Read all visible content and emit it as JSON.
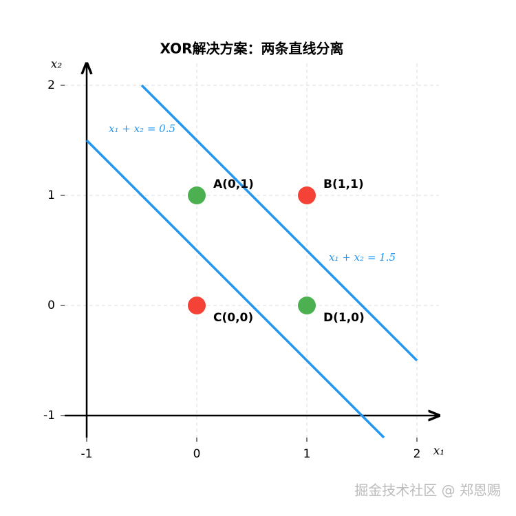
{
  "chart_data": {
    "type": "scatter",
    "title": "XOR解决方案：两条直线分离",
    "x_label": "x₁",
    "y_label": "x₂",
    "xlim": [
      -1.2,
      2.2
    ],
    "ylim": [
      -1.2,
      2.2
    ],
    "xticks": [
      -1,
      0,
      1,
      2
    ],
    "yticks": [
      -1,
      0,
      1,
      2
    ],
    "grid": true,
    "points": {
      "x": [
        0,
        1,
        0,
        1
      ],
      "y": [
        1,
        1,
        0,
        0
      ],
      "labels": [
        "A(0,1)",
        "B(1,1)",
        "C(0,0)",
        "D(1,0)"
      ],
      "colors": [
        "#4caf50",
        "#f44336",
        "#f44336",
        "#4caf50"
      ]
    },
    "lines": [
      {
        "label": "x₁ + x₂ = 0.5",
        "color": "#2196f3",
        "x": [
          -1,
          1.7
        ],
        "y": [
          1.5,
          -1.2
        ]
      },
      {
        "label": "x₁ + x₂ = 1.5",
        "color": "#2196f3",
        "x": [
          -0.5,
          2
        ],
        "y": [
          2,
          -0.5
        ]
      }
    ]
  },
  "watermark": "掘金技术社区 @ 郑恩赐"
}
